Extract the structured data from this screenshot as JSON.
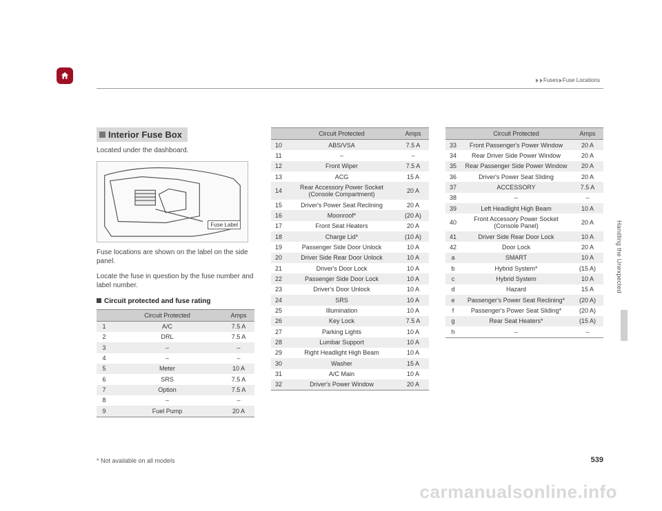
{
  "breadcrumb": {
    "a": "Fuses",
    "b": "Fuse Locations"
  },
  "section_title": "Interior Fuse Box",
  "located_text": "Located under the dashboard.",
  "fuse_label": "Fuse Label",
  "caption1": "Fuse locations are shown on the label on the side panel.",
  "caption2": "Locate the fuse in question by the fuse number and label number.",
  "subhead": "Circuit protected and fuse rating",
  "headers": {
    "num": "",
    "name": "Circuit Protected",
    "amps": "Amps"
  },
  "col1_rows": [
    {
      "n": "1",
      "name": "A/C",
      "amps": "7.5 A",
      "shade": true
    },
    {
      "n": "2",
      "name": "DRL",
      "amps": "7.5 A",
      "shade": false
    },
    {
      "n": "3",
      "name": "–",
      "amps": "–",
      "shade": true
    },
    {
      "n": "4",
      "name": "–",
      "amps": "–",
      "shade": false
    },
    {
      "n": "5",
      "name": "Meter",
      "amps": "10 A",
      "shade": true
    },
    {
      "n": "6",
      "name": "SRS",
      "amps": "7.5 A",
      "shade": false
    },
    {
      "n": "7",
      "name": "Option",
      "amps": "7.5 A",
      "shade": true
    },
    {
      "n": "8",
      "name": "–",
      "amps": "–",
      "shade": false
    },
    {
      "n": "9",
      "name": "Fuel Pump",
      "amps": "20 A",
      "shade": true
    }
  ],
  "col2_rows": [
    {
      "n": "10",
      "name": "ABS/VSA",
      "amps": "7.5 A",
      "shade": true
    },
    {
      "n": "11",
      "name": "–",
      "amps": "–",
      "shade": false
    },
    {
      "n": "12",
      "name": "Front Wiper",
      "amps": "7.5 A",
      "shade": true
    },
    {
      "n": "13",
      "name": "ACG",
      "amps": "15 A",
      "shade": false
    },
    {
      "n": "14",
      "name": "Rear Accessory Power Socket (Console Compartment)",
      "amps": "20 A",
      "shade": true
    },
    {
      "n": "15",
      "name": "Driver's Power Seat Reclining",
      "amps": "20 A",
      "shade": false
    },
    {
      "n": "16",
      "name": "Moonroof*",
      "amps": "(20 A)",
      "shade": true
    },
    {
      "n": "17",
      "name": "Front Seat Heaters",
      "amps": "20 A",
      "shade": false
    },
    {
      "n": "18",
      "name": "Charge Lid*",
      "amps": "(10 A)",
      "shade": true
    },
    {
      "n": "19",
      "name": "Passenger Side Door Unlock",
      "amps": "10 A",
      "shade": false
    },
    {
      "n": "20",
      "name": "Driver Side Rear Door Unlock",
      "amps": "10 A",
      "shade": true
    },
    {
      "n": "21",
      "name": "Driver's Door Lock",
      "amps": "10 A",
      "shade": false
    },
    {
      "n": "22",
      "name": "Passenger Side Door Lock",
      "amps": "10 A",
      "shade": true
    },
    {
      "n": "23",
      "name": "Driver's Door Unlock",
      "amps": "10 A",
      "shade": false
    },
    {
      "n": "24",
      "name": "SRS",
      "amps": "10 A",
      "shade": true
    },
    {
      "n": "25",
      "name": "Illumination",
      "amps": "10 A",
      "shade": false
    },
    {
      "n": "26",
      "name": "Key Lock",
      "amps": "7.5 A",
      "shade": true
    },
    {
      "n": "27",
      "name": "Parking Lights",
      "amps": "10 A",
      "shade": false
    },
    {
      "n": "28",
      "name": "Lumbar Support",
      "amps": "10 A",
      "shade": true
    },
    {
      "n": "29",
      "name": "Right Headlight High Beam",
      "amps": "10 A",
      "shade": false
    },
    {
      "n": "30",
      "name": "Washer",
      "amps": "15 A",
      "shade": true
    },
    {
      "n": "31",
      "name": "A/C Main",
      "amps": "10 A",
      "shade": false
    },
    {
      "n": "32",
      "name": "Driver's Power Window",
      "amps": "20 A",
      "shade": true
    }
  ],
  "col3_rows": [
    {
      "n": "33",
      "name": "Front Passenger's Power Window",
      "amps": "20 A",
      "shade": true
    },
    {
      "n": "34",
      "name": "Rear Driver Side Power Window",
      "amps": "20 A",
      "shade": false
    },
    {
      "n": "35",
      "name": "Rear Passenger Side Power Window",
      "amps": "20 A",
      "shade": true
    },
    {
      "n": "36",
      "name": "Driver's Power Seat Sliding",
      "amps": "20 A",
      "shade": false
    },
    {
      "n": "37",
      "name": "ACCESSORY",
      "amps": "7.5 A",
      "shade": true
    },
    {
      "n": "38",
      "name": "–",
      "amps": "–",
      "shade": false
    },
    {
      "n": "39",
      "name": "Left Headlight High Beam",
      "amps": "10 A",
      "shade": true
    },
    {
      "n": "40",
      "name": "Front Accessory Power Socket (Console Panel)",
      "amps": "20 A",
      "shade": false
    },
    {
      "n": "41",
      "name": "Driver Side Rear Door Lock",
      "amps": "10 A",
      "shade": true
    },
    {
      "n": "42",
      "name": "Door Lock",
      "amps": "20 A",
      "shade": false
    },
    {
      "n": "a",
      "name": "SMART",
      "amps": "10 A",
      "shade": true
    },
    {
      "n": "b",
      "name": "Hybrid System*",
      "amps": "(15 A)",
      "shade": false
    },
    {
      "n": "c",
      "name": "Hybrid System",
      "amps": "10 A",
      "shade": true
    },
    {
      "n": "d",
      "name": "Hazard",
      "amps": "15 A",
      "shade": false
    },
    {
      "n": "e",
      "name": "Passenger's Power Seat Reclining*",
      "amps": "(20 A)",
      "shade": true
    },
    {
      "n": "f",
      "name": "Passenger's Power Seat Sliding*",
      "amps": "(20 A)",
      "shade": false
    },
    {
      "n": "g",
      "name": "Rear Seat Heaters*",
      "amps": "(15 A)",
      "shade": true
    },
    {
      "n": "h",
      "name": "–",
      "amps": "–",
      "shade": false
    }
  ],
  "footnote": "* Not available on all models",
  "pagenum": "539",
  "side_tab": "Handling the Unexpected",
  "watermark": "carmanualsonline.info"
}
